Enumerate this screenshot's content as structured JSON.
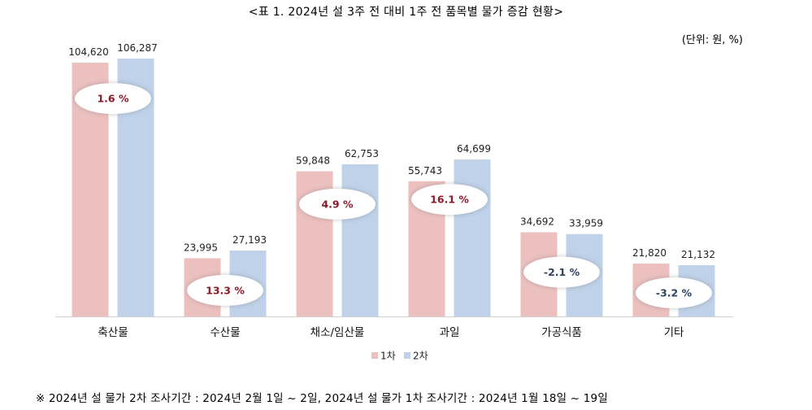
{
  "header": {
    "title": "<표 1. 2024년 설 3주 전 대비 1주 전 품목별 물가 증감 현황>",
    "unit": "(단위: 원, %)"
  },
  "footer": {
    "note": "※ 2024년 설 물가 2차 조사기간 : 2024년 2월 1일 ~ 2일, 2024년 설 물가 1차 조사기간 : 2024년 1월 18일 ~ 19일"
  },
  "colors": {
    "series1": "#ecc0bf",
    "series2": "#bfd2e9",
    "positive_text": "#8b1a2a",
    "negative_text": "#2e4463"
  },
  "chart_data": {
    "type": "bar",
    "categories": [
      "축산물",
      "수산물",
      "채소/임산물",
      "과일",
      "가공식품",
      "기타"
    ],
    "series": [
      {
        "name": "1차",
        "values": [
          104620,
          23995,
          59848,
          55743,
          34692,
          21820
        ]
      },
      {
        "name": "2차",
        "values": [
          106287,
          27193,
          62753,
          64699,
          33959,
          21132
        ]
      }
    ],
    "data_labels": [
      [
        "104,620",
        "23,995",
        "59,848",
        "55,743",
        "34,692",
        "21,820"
      ],
      [
        "106,287",
        "27,193",
        "62,753",
        "64,699",
        "33,959",
        "21,132"
      ]
    ],
    "change_labels": [
      "1.6 %",
      "13.3 %",
      "4.9 %",
      "16.1 %",
      "-2.1 %",
      "-3.2 %"
    ],
    "change_values": [
      1.6,
      13.3,
      4.9,
      16.1,
      -2.1,
      -3.2
    ],
    "ylim": [
      0,
      110000
    ],
    "grid": false,
    "legend_position": "bottom"
  }
}
